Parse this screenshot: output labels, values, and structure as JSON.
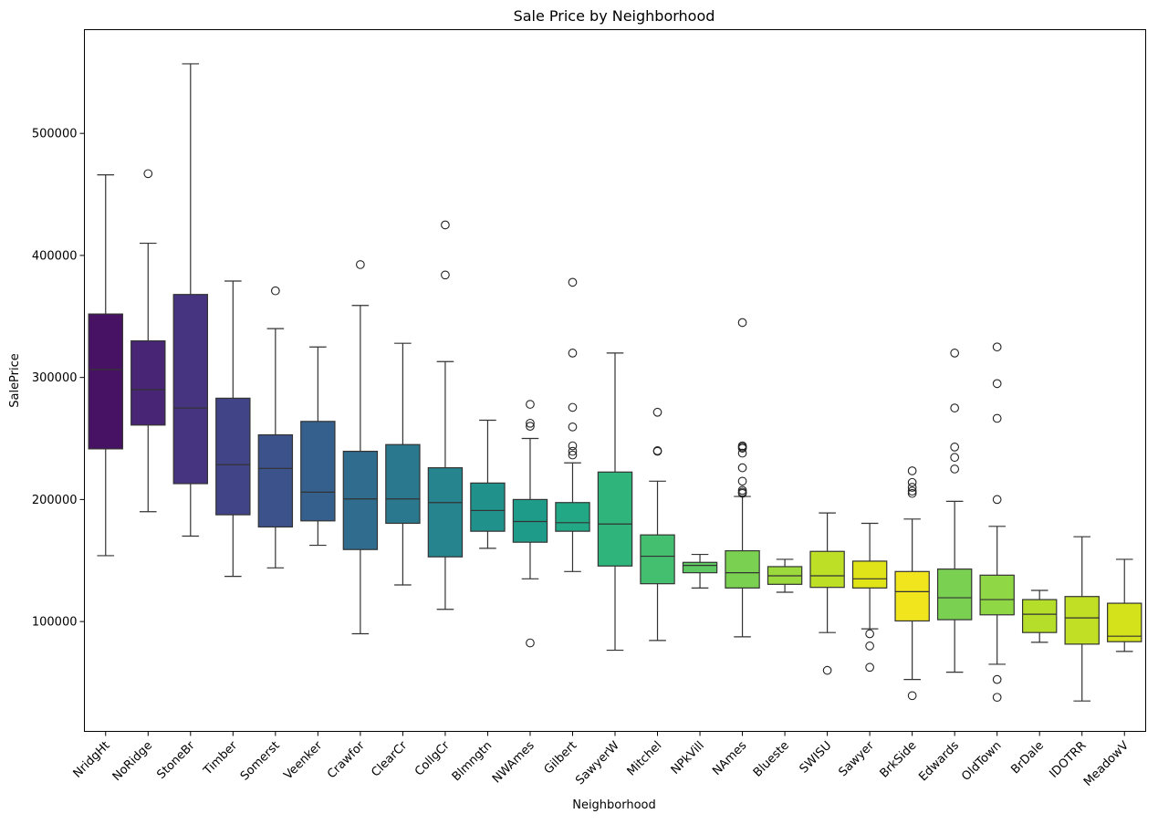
{
  "chart_data": {
    "type": "box",
    "title": "Sale Price by Neighborhood",
    "xlabel": "Neighborhood",
    "ylabel": "SalePrice",
    "ylim": [
      10000,
      585000
    ],
    "yticks": [
      100000,
      200000,
      300000,
      400000,
      500000
    ],
    "grid": false,
    "legend": "none",
    "categories": [
      "NridgHt",
      "NoRidge",
      "StoneBr",
      "Timber",
      "Somerst",
      "Veenker",
      "Crawfor",
      "ClearCr",
      "CollgCr",
      "Blmngtn",
      "NWAmes",
      "Gilbert",
      "SawyerW",
      "Mitchel",
      "NPkVill",
      "NAmes",
      "Blueste",
      "SWISU",
      "Sawyer",
      "BrkSide",
      "Edwards",
      "OldTown",
      "BrDale",
      "IDOTRR",
      "MeadowV"
    ],
    "colors": [
      "#471164",
      "#482575",
      "#463480",
      "#414487",
      "#3b528b",
      "#355f8d",
      "#2f6c8e",
      "#2a788e",
      "#25848e",
      "#21918c",
      "#1e9c89",
      "#22a884",
      "#2fb47c",
      "#44bf70",
      "#5ec962",
      "#7ad151",
      "#9bd93c",
      "#bddf26",
      "#dfe318",
      "#f1e51d",
      "#7ad151",
      "#8fd744",
      "#b5de2b",
      "#c0df25",
      "#d3e21b"
    ],
    "boxes": [
      {
        "whislo": 154000,
        "q1": 241500,
        "med": 306500,
        "q3": 352000,
        "whishi": 466000,
        "fliers": []
      },
      {
        "whislo": 190000,
        "q1": 261000,
        "med": 290000,
        "q3": 330000,
        "whishi": 410000,
        "fliers": [
          467000
        ]
      },
      {
        "whislo": 170000,
        "q1": 213000,
        "med": 275000,
        "q3": 368000,
        "whishi": 557000,
        "fliers": []
      },
      {
        "whislo": 137000,
        "q1": 187500,
        "med": 228500,
        "q3": 283000,
        "whishi": 379000,
        "fliers": []
      },
      {
        "whislo": 144000,
        "q1": 177500,
        "med": 225500,
        "q3": 253000,
        "whishi": 340000,
        "fliers": [
          371000
        ]
      },
      {
        "whislo": 162500,
        "q1": 182500,
        "med": 206000,
        "q3": 264000,
        "whishi": 325000,
        "fliers": []
      },
      {
        "whislo": 90000,
        "q1": 159000,
        "med": 200500,
        "q3": 239500,
        "whishi": 359000,
        "fliers": [
          392500
        ]
      },
      {
        "whislo": 130000,
        "q1": 180500,
        "med": 200500,
        "q3": 245000,
        "whishi": 328000,
        "fliers": []
      },
      {
        "whislo": 110000,
        "q1": 153000,
        "med": 197500,
        "q3": 226000,
        "whishi": 313000,
        "fliers": [
          384000,
          425000
        ]
      },
      {
        "whislo": 160000,
        "q1": 174000,
        "med": 191000,
        "q3": 213500,
        "whishi": 265000,
        "fliers": []
      },
      {
        "whislo": 135000,
        "q1": 165000,
        "med": 182000,
        "q3": 200000,
        "whishi": 250000,
        "fliers": [
          278000,
          262500,
          260000,
          82500
        ]
      },
      {
        "whislo": 141000,
        "q1": 174000,
        "med": 181000,
        "q3": 197500,
        "whishi": 230000,
        "fliers": [
          378000,
          320000,
          275500,
          259500,
          244000,
          239500,
          236500
        ]
      },
      {
        "whislo": 76500,
        "q1": 145500,
        "med": 179900,
        "q3": 222500,
        "whishi": 320000,
        "fliers": []
      },
      {
        "whislo": 84500,
        "q1": 131000,
        "med": 153500,
        "q3": 171000,
        "whishi": 215000,
        "fliers": [
          271500,
          240000,
          239500
        ]
      },
      {
        "whislo": 127500,
        "q1": 140000,
        "med": 146000,
        "q3": 148500,
        "whishi": 155000,
        "fliers": []
      },
      {
        "whislo": 87500,
        "q1": 127500,
        "med": 140000,
        "q3": 158000,
        "whishi": 202500,
        "fliers": [
          345000,
          244000,
          243000,
          242000,
          238000,
          226000,
          215000,
          207500,
          206000,
          205000
        ]
      },
      {
        "whislo": 124000,
        "q1": 130500,
        "med": 137500,
        "q3": 145000,
        "whishi": 151000,
        "fliers": []
      },
      {
        "whislo": 91000,
        "q1": 128000,
        "med": 137500,
        "q3": 157500,
        "whishi": 189000,
        "fliers": [
          60000
        ]
      },
      {
        "whislo": 94000,
        "q1": 127500,
        "med": 135000,
        "q3": 149500,
        "whishi": 180500,
        "fliers": [
          90000,
          80000,
          62500
        ]
      },
      {
        "whislo": 52500,
        "q1": 100500,
        "med": 124500,
        "q3": 141000,
        "whishi": 184000,
        "fliers": [
          223500,
          214000,
          210000,
          206900,
          205000,
          39300
        ]
      },
      {
        "whislo": 58500,
        "q1": 101500,
        "med": 119500,
        "q3": 143000,
        "whishi": 198500,
        "fliers": [
          320000,
          275000,
          243000,
          234500,
          225000
        ]
      },
      {
        "whislo": 65000,
        "q1": 105500,
        "med": 118000,
        "q3": 138000,
        "whishi": 178000,
        "fliers": [
          325000,
          295000,
          266500,
          200000,
          52500,
          37900
        ]
      },
      {
        "whislo": 83000,
        "q1": 91000,
        "med": 106000,
        "q3": 118000,
        "whishi": 125500,
        "fliers": []
      },
      {
        "whislo": 34900,
        "q1": 81500,
        "med": 103000,
        "q3": 120500,
        "whishi": 169500,
        "fliers": []
      },
      {
        "whislo": 75500,
        "q1": 83500,
        "med": 88000,
        "q3": 115000,
        "whishi": 151000,
        "fliers": []
      }
    ]
  }
}
